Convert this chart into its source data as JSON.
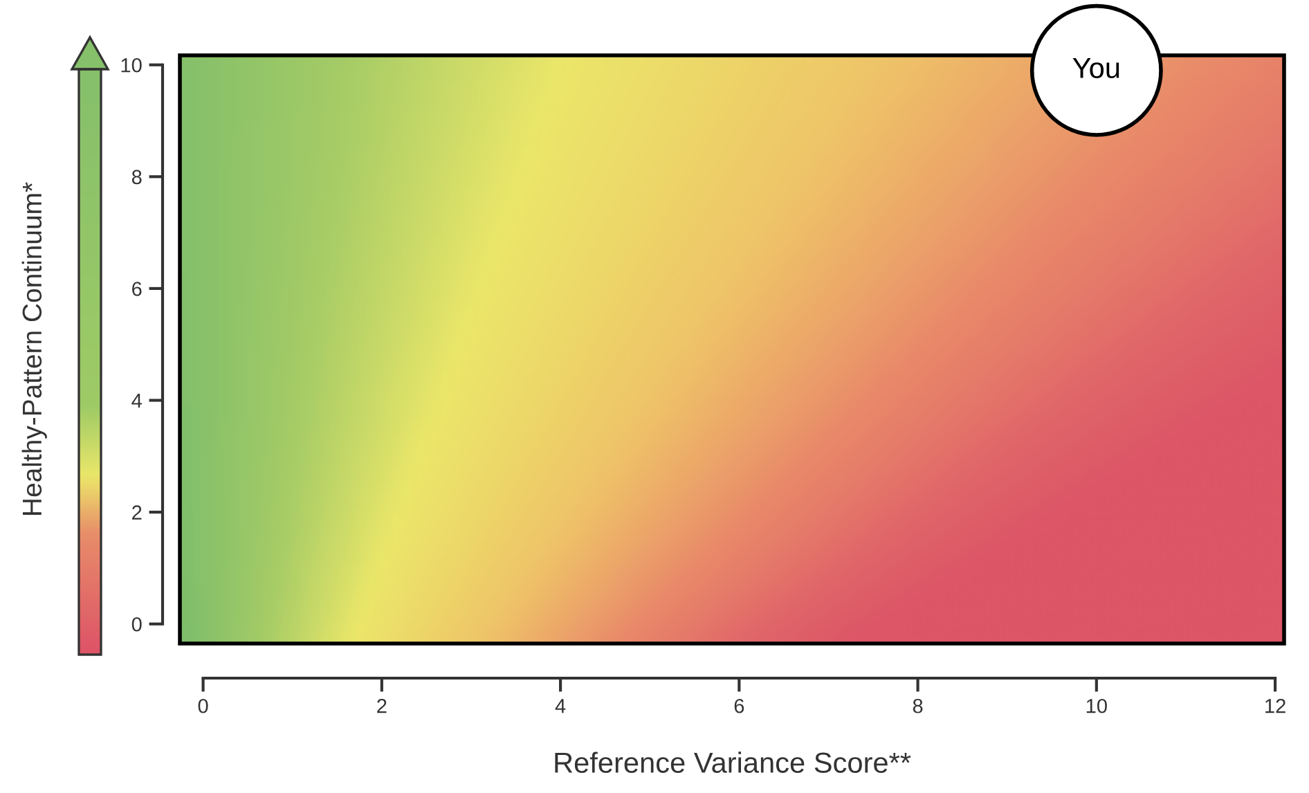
{
  "chart_data": {
    "type": "scatter",
    "xlabel": "Reference Variance Score**",
    "ylabel": "Healthy-Pattern Continuum*",
    "x": [
      10
    ],
    "values": [
      9.9
    ],
    "color": "#ffffff",
    "annotations": [
      {
        "text": "You",
        "x": 10,
        "y": 9.9
      }
    ],
    "xlim": [
      -0.26,
      12.1
    ],
    "ylim": [
      -0.35,
      10.17
    ],
    "xticks": [
      0,
      2,
      4,
      6,
      8,
      10,
      12
    ],
    "yticks": [
      0,
      2,
      4,
      6,
      8,
      10
    ],
    "grid": false,
    "legend": false,
    "marker": "circle"
  }
}
